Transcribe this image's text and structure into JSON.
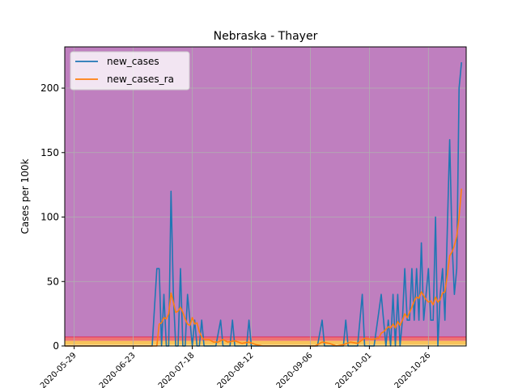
{
  "chart_data": {
    "type": "line",
    "title": "Nebraska - Thayer",
    "xlabel": "",
    "ylabel": "Cases per 100k",
    "x_start": "2020-05-25",
    "x_end": "2020-11-11",
    "ylim": [
      0,
      232
    ],
    "grid": true,
    "legend_position": "top-left",
    "x_ticks": [
      "2020-05-29",
      "2020-06-23",
      "2020-07-18",
      "2020-08-12",
      "2020-09-06",
      "2020-10-01",
      "2020-10-26"
    ],
    "x_tick_dates": [
      "2020-05-29",
      "2020-06-23",
      "2020-07-18",
      "2020-08-12",
      "2020-09-06",
      "2020-10-01",
      "2020-10-26"
    ],
    "y_ticks": [
      0,
      50,
      100,
      150,
      200
    ],
    "background_bands": [
      {
        "from": 0,
        "to": 1,
        "color": "#ffe9a6"
      },
      {
        "from": 1,
        "to": 4,
        "color": "#f7c35a"
      },
      {
        "from": 4,
        "to": 7,
        "color": "#ee7373"
      },
      {
        "from": 7,
        "to": 232,
        "color": "#bf7fbf"
      }
    ],
    "series": [
      {
        "name": "new_cases",
        "color": "#1f77b4",
        "points": [
          [
            "2020-05-25",
            0
          ],
          [
            "2020-07-01",
            0
          ],
          [
            "2020-07-03",
            60
          ],
          [
            "2020-07-04",
            60
          ],
          [
            "2020-07-05",
            0
          ],
          [
            "2020-07-06",
            40
          ],
          [
            "2020-07-07",
            0
          ],
          [
            "2020-07-08",
            0
          ],
          [
            "2020-07-09",
            120
          ],
          [
            "2020-07-10",
            40
          ],
          [
            "2020-07-11",
            0
          ],
          [
            "2020-07-12",
            0
          ],
          [
            "2020-07-13",
            60
          ],
          [
            "2020-07-14",
            0
          ],
          [
            "2020-07-15",
            0
          ],
          [
            "2020-07-16",
            40
          ],
          [
            "2020-07-17",
            20
          ],
          [
            "2020-07-18",
            0
          ],
          [
            "2020-07-19",
            20
          ],
          [
            "2020-07-20",
            0
          ],
          [
            "2020-07-21",
            0
          ],
          [
            "2020-07-22",
            20
          ],
          [
            "2020-07-23",
            0
          ],
          [
            "2020-07-28",
            0
          ],
          [
            "2020-07-30",
            20
          ],
          [
            "2020-07-31",
            0
          ],
          [
            "2020-08-03",
            0
          ],
          [
            "2020-08-04",
            20
          ],
          [
            "2020-08-05",
            0
          ],
          [
            "2020-08-10",
            0
          ],
          [
            "2020-08-11",
            20
          ],
          [
            "2020-08-12",
            0
          ],
          [
            "2020-09-09",
            0
          ],
          [
            "2020-09-11",
            20
          ],
          [
            "2020-09-12",
            0
          ],
          [
            "2020-09-20",
            0
          ],
          [
            "2020-09-21",
            20
          ],
          [
            "2020-09-22",
            0
          ],
          [
            "2020-09-26",
            0
          ],
          [
            "2020-09-28",
            40
          ],
          [
            "2020-09-29",
            0
          ],
          [
            "2020-10-03",
            0
          ],
          [
            "2020-10-06",
            40
          ],
          [
            "2020-10-08",
            0
          ],
          [
            "2020-10-09",
            20
          ],
          [
            "2020-10-10",
            0
          ],
          [
            "2020-10-11",
            40
          ],
          [
            "2020-10-12",
            0
          ],
          [
            "2020-10-13",
            40
          ],
          [
            "2020-10-14",
            0
          ],
          [
            "2020-10-15",
            20
          ],
          [
            "2020-10-16",
            60
          ],
          [
            "2020-10-17",
            20
          ],
          [
            "2020-10-18",
            20
          ],
          [
            "2020-10-19",
            60
          ],
          [
            "2020-10-20",
            20
          ],
          [
            "2020-10-21",
            60
          ],
          [
            "2020-10-22",
            20
          ],
          [
            "2020-10-23",
            80
          ],
          [
            "2020-10-24",
            20
          ],
          [
            "2020-10-25",
            40
          ],
          [
            "2020-10-26",
            60
          ],
          [
            "2020-10-27",
            20
          ],
          [
            "2020-10-28",
            20
          ],
          [
            "2020-10-29",
            100
          ],
          [
            "2020-10-30",
            0
          ],
          [
            "2020-10-31",
            40
          ],
          [
            "2020-11-01",
            60
          ],
          [
            "2020-11-02",
            20
          ],
          [
            "2020-11-04",
            160
          ],
          [
            "2020-11-05",
            80
          ],
          [
            "2020-11-06",
            40
          ],
          [
            "2020-11-07",
            60
          ],
          [
            "2020-11-08",
            200
          ],
          [
            "2020-11-09",
            220
          ]
        ]
      },
      {
        "name": "new_cases_ra",
        "color": "#ff7f0e",
        "points": [
          [
            "2020-05-25",
            0
          ],
          [
            "2020-07-03",
            0
          ],
          [
            "2020-07-04",
            17
          ],
          [
            "2020-07-05",
            18
          ],
          [
            "2020-07-06",
            22
          ],
          [
            "2020-07-07",
            21
          ],
          [
            "2020-07-08",
            25
          ],
          [
            "2020-07-09",
            41
          ],
          [
            "2020-07-10",
            34
          ],
          [
            "2020-07-11",
            26
          ],
          [
            "2020-07-12",
            27
          ],
          [
            "2020-07-13",
            30
          ],
          [
            "2020-07-14",
            26
          ],
          [
            "2020-07-15",
            21
          ],
          [
            "2020-07-16",
            17
          ],
          [
            "2020-07-17",
            16
          ],
          [
            "2020-07-18",
            22
          ],
          [
            "2020-07-19",
            17
          ],
          [
            "2020-07-20",
            18
          ],
          [
            "2020-07-21",
            11
          ],
          [
            "2020-07-22",
            7
          ],
          [
            "2020-07-23",
            5
          ],
          [
            "2020-07-25",
            5
          ],
          [
            "2020-07-27",
            3
          ],
          [
            "2020-07-29",
            3
          ],
          [
            "2020-07-31",
            5
          ],
          [
            "2020-08-02",
            3
          ],
          [
            "2020-08-05",
            4
          ],
          [
            "2020-08-08",
            2
          ],
          [
            "2020-08-11",
            3
          ],
          [
            "2020-08-14",
            1
          ],
          [
            "2020-08-17",
            0
          ],
          [
            "2020-09-08",
            0
          ],
          [
            "2020-09-11",
            3
          ],
          [
            "2020-09-14",
            2
          ],
          [
            "2020-09-17",
            0
          ],
          [
            "2020-09-20",
            1
          ],
          [
            "2020-09-23",
            3
          ],
          [
            "2020-09-26",
            2
          ],
          [
            "2020-09-29",
            6
          ],
          [
            "2020-10-02",
            5
          ],
          [
            "2020-10-05",
            6
          ],
          [
            "2020-10-06",
            10
          ],
          [
            "2020-10-07",
            11
          ],
          [
            "2020-10-08",
            13
          ],
          [
            "2020-10-09",
            15
          ],
          [
            "2020-10-10",
            14
          ],
          [
            "2020-10-11",
            17
          ],
          [
            "2020-10-12",
            14
          ],
          [
            "2020-10-13",
            19
          ],
          [
            "2020-10-14",
            16
          ],
          [
            "2020-10-15",
            20
          ],
          [
            "2020-10-16",
            25
          ],
          [
            "2020-10-17",
            22
          ],
          [
            "2020-10-18",
            26
          ],
          [
            "2020-10-19",
            30
          ],
          [
            "2020-10-20",
            35
          ],
          [
            "2020-10-21",
            38
          ],
          [
            "2020-10-22",
            37
          ],
          [
            "2020-10-23",
            42
          ],
          [
            "2020-10-24",
            39
          ],
          [
            "2020-10-25",
            36
          ],
          [
            "2020-10-26",
            34
          ],
          [
            "2020-10-27",
            35
          ],
          [
            "2020-10-28",
            32
          ],
          [
            "2020-10-29",
            38
          ],
          [
            "2020-10-30",
            34
          ],
          [
            "2020-10-31",
            36
          ],
          [
            "2020-11-01",
            41
          ],
          [
            "2020-11-02",
            42
          ],
          [
            "2020-11-03",
            55
          ],
          [
            "2020-11-04",
            70
          ],
          [
            "2020-11-05",
            73
          ],
          [
            "2020-11-06",
            78
          ],
          [
            "2020-11-07",
            85
          ],
          [
            "2020-11-08",
            100
          ],
          [
            "2020-11-09",
            122
          ]
        ]
      }
    ]
  }
}
